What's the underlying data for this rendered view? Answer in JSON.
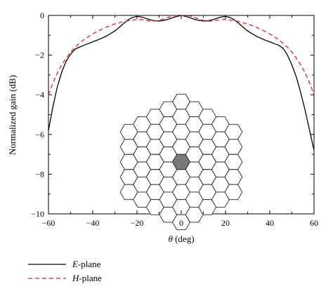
{
  "chart_data": {
    "type": "line",
    "xlabel_symbol": "θ",
    "xlabel_unit": " (deg)",
    "ylabel": "Normalized gain (dB)",
    "xlim": [
      -60,
      60
    ],
    "ylim": [
      -10,
      0
    ],
    "xticks": [
      -60,
      -40,
      -20,
      0,
      20,
      40,
      60
    ],
    "yticks": [
      0,
      -2,
      -4,
      -6,
      -8,
      -10
    ],
    "xtick_labels": [
      "−60",
      "−40",
      "−20",
      "0",
      "20",
      "40",
      "60"
    ],
    "ytick_labels": [
      "0",
      "−2",
      "−4",
      "−6",
      "−8",
      "−10"
    ],
    "grid": false,
    "legend_position": "bottom-left outside",
    "series": [
      {
        "name_italic": "E",
        "name_rest": "-plane",
        "color": "#000000",
        "dash": "solid",
        "x": [
          -60,
          -58,
          -56,
          -54,
          -52,
          -50,
          -48,
          -46,
          -44,
          -42,
          -40,
          -38,
          -36,
          -34,
          -32,
          -30,
          -28,
          -26,
          -24,
          -22,
          -20,
          -18,
          -16,
          -14,
          -12,
          -10,
          -8,
          -6,
          -4,
          -2,
          0,
          2,
          4,
          6,
          8,
          10,
          12,
          14,
          16,
          18,
          20,
          22,
          24,
          26,
          28,
          30,
          32,
          34,
          36,
          38,
          40,
          42,
          44,
          46,
          48,
          50,
          52,
          54,
          56,
          58,
          60
        ],
        "y": [
          -5.8,
          -4.6,
          -3.6,
          -2.85,
          -2.3,
          -1.95,
          -1.7,
          -1.6,
          -1.5,
          -1.42,
          -1.33,
          -1.25,
          -1.15,
          -1.05,
          -0.92,
          -0.78,
          -0.6,
          -0.4,
          -0.22,
          -0.1,
          -0.05,
          -0.08,
          -0.15,
          -0.22,
          -0.27,
          -0.28,
          -0.25,
          -0.2,
          -0.12,
          -0.05,
          0.0,
          -0.05,
          -0.12,
          -0.2,
          -0.25,
          -0.28,
          -0.27,
          -0.22,
          -0.15,
          -0.08,
          -0.05,
          -0.1,
          -0.22,
          -0.4,
          -0.6,
          -0.78,
          -0.92,
          -1.05,
          -1.15,
          -1.25,
          -1.33,
          -1.42,
          -1.5,
          -1.65,
          -2.0,
          -2.5,
          -3.1,
          -3.9,
          -4.8,
          -5.8,
          -6.8
        ]
      },
      {
        "name_italic": "H",
        "name_rest": "-plane",
        "color": "#d62728",
        "dash": "dashed",
        "x": [
          -60,
          -58,
          -56,
          -54,
          -52,
          -50,
          -48,
          -46,
          -44,
          -42,
          -40,
          -38,
          -36,
          -34,
          -32,
          -30,
          -28,
          -26,
          -24,
          -22,
          -20,
          -18,
          -16,
          -14,
          -12,
          -10,
          -8,
          -6,
          -4,
          -2,
          0,
          2,
          4,
          6,
          8,
          10,
          12,
          14,
          16,
          18,
          20,
          22,
          24,
          26,
          28,
          30,
          32,
          34,
          36,
          38,
          40,
          42,
          44,
          46,
          48,
          50,
          52,
          54,
          56,
          58,
          60
        ],
        "y": [
          -4.0,
          -3.4,
          -2.9,
          -2.5,
          -2.15,
          -1.85,
          -1.6,
          -1.4,
          -1.22,
          -1.07,
          -0.93,
          -0.81,
          -0.7,
          -0.6,
          -0.51,
          -0.43,
          -0.37,
          -0.31,
          -0.27,
          -0.23,
          -0.2,
          -0.21,
          -0.25,
          -0.28,
          -0.28,
          -0.25,
          -0.18,
          -0.1,
          -0.03,
          0.0,
          0.0,
          0.0,
          -0.03,
          -0.1,
          -0.18,
          -0.25,
          -0.28,
          -0.28,
          -0.25,
          -0.21,
          -0.2,
          -0.23,
          -0.27,
          -0.31,
          -0.37,
          -0.43,
          -0.51,
          -0.6,
          -0.7,
          -0.81,
          -0.93,
          -1.07,
          -1.22,
          -1.4,
          -1.6,
          -1.85,
          -2.15,
          -2.5,
          -2.9,
          -3.4,
          -4.0
        ]
      }
    ]
  },
  "inset": {
    "hex_rings": 4,
    "cell_fill": "#ffffff",
    "center_fill": "#7a7a7a",
    "stroke": "#222222"
  }
}
